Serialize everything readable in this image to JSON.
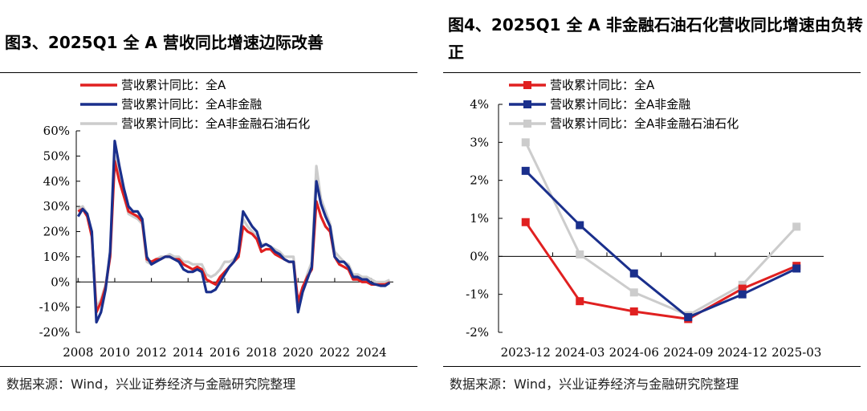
{
  "charts": [
    {
      "title": "图3、2025Q1 全 A 营收同比增速边际改善",
      "source": "数据来源：Wind，兴业证券经济与金融研究院整理"
    },
    {
      "title": "图4、2025Q1 全 A 非金融石油石化营收同比增速由负转正",
      "source": "数据来源：Wind，兴业证券经济与金融研究院整理"
    }
  ],
  "chart_data": [
    {
      "type": "line",
      "title": "图3、2025Q1 全 A 营收同比增速边际改善",
      "xlabel": "",
      "ylabel": "",
      "xlim": [
        2007.9,
        2025.2
      ],
      "ylim": [
        -20,
        60
      ],
      "x_ticks": [
        "2008",
        "2010",
        "2012",
        "2014",
        "2016",
        "2018",
        "2020",
        "2022",
        "2024"
      ],
      "y_ticks": [
        "-20%",
        "-10%",
        "0%",
        "10%",
        "20%",
        "30%",
        "40%",
        "50%",
        "60%"
      ],
      "legend_position": "top-left",
      "series": [
        {
          "name": "营收累计同比：全A",
          "color": "#e02020",
          "points": [
            [
              2008.0,
              28
            ],
            [
              2008.25,
              29
            ],
            [
              2008.5,
              26
            ],
            [
              2008.75,
              18
            ],
            [
              2009.0,
              -12
            ],
            [
              2009.25,
              -8
            ],
            [
              2009.5,
              -2
            ],
            [
              2009.75,
              10
            ],
            [
              2010.0,
              48
            ],
            [
              2010.25,
              40
            ],
            [
              2010.5,
              34
            ],
            [
              2010.75,
              28
            ],
            [
              2011.0,
              27
            ],
            [
              2011.25,
              26
            ],
            [
              2011.5,
              24
            ],
            [
              2011.75,
              9
            ],
            [
              2012.0,
              8
            ],
            [
              2012.25,
              9
            ],
            [
              2012.5,
              9
            ],
            [
              2012.75,
              10
            ],
            [
              2013.0,
              10
            ],
            [
              2013.25,
              9
            ],
            [
              2013.5,
              9
            ],
            [
              2013.75,
              7
            ],
            [
              2014.0,
              6
            ],
            [
              2014.25,
              5
            ],
            [
              2014.5,
              6
            ],
            [
              2014.75,
              5
            ],
            [
              2015.0,
              1
            ],
            [
              2015.25,
              0
            ],
            [
              2015.5,
              -1
            ],
            [
              2015.75,
              2
            ],
            [
              2016.0,
              4
            ],
            [
              2016.25,
              6
            ],
            [
              2016.5,
              8
            ],
            [
              2016.75,
              10
            ],
            [
              2017.0,
              22
            ],
            [
              2017.25,
              20
            ],
            [
              2017.5,
              19
            ],
            [
              2017.75,
              17
            ],
            [
              2018.0,
              12
            ],
            [
              2018.25,
              13
            ],
            [
              2018.5,
              13
            ],
            [
              2018.75,
              11
            ],
            [
              2019.0,
              10
            ],
            [
              2019.25,
              9
            ],
            [
              2019.5,
              8
            ],
            [
              2019.75,
              8
            ],
            [
              2020.0,
              -8
            ],
            [
              2020.25,
              -2
            ],
            [
              2020.5,
              2
            ],
            [
              2020.75,
              5
            ],
            [
              2021.0,
              32
            ],
            [
              2021.25,
              26
            ],
            [
              2021.5,
              22
            ],
            [
              2021.75,
              20
            ],
            [
              2022.0,
              10
            ],
            [
              2022.25,
              7
            ],
            [
              2022.5,
              6
            ],
            [
              2022.75,
              5
            ],
            [
              2023.0,
              1
            ],
            [
              2023.25,
              1
            ],
            [
              2023.5,
              0
            ],
            [
              2023.75,
              0
            ],
            [
              2024.0,
              -1
            ],
            [
              2024.25,
              -1
            ],
            [
              2024.5,
              -1
            ],
            [
              2024.75,
              -1
            ],
            [
              2025.0,
              -0.2
            ]
          ]
        },
        {
          "name": "营收累计同比：全A非金融",
          "color": "#1a2f8c",
          "points": [
            [
              2008.0,
              26
            ],
            [
              2008.25,
              29
            ],
            [
              2008.5,
              27
            ],
            [
              2008.75,
              20
            ],
            [
              2009.0,
              -16
            ],
            [
              2009.25,
              -12
            ],
            [
              2009.5,
              -3
            ],
            [
              2009.75,
              12
            ],
            [
              2010.0,
              56
            ],
            [
              2010.25,
              46
            ],
            [
              2010.5,
              37
            ],
            [
              2010.75,
              30
            ],
            [
              2011.0,
              28
            ],
            [
              2011.25,
              28
            ],
            [
              2011.5,
              25
            ],
            [
              2011.75,
              10
            ],
            [
              2012.0,
              7
            ],
            [
              2012.25,
              8
            ],
            [
              2012.5,
              9
            ],
            [
              2012.75,
              10
            ],
            [
              2013.0,
              10
            ],
            [
              2013.25,
              9
            ],
            [
              2013.5,
              8
            ],
            [
              2013.75,
              5
            ],
            [
              2014.0,
              4
            ],
            [
              2014.25,
              4
            ],
            [
              2014.5,
              5
            ],
            [
              2014.75,
              4
            ],
            [
              2015.0,
              -4
            ],
            [
              2015.25,
              -4
            ],
            [
              2015.5,
              -3
            ],
            [
              2015.75,
              0
            ],
            [
              2016.0,
              3
            ],
            [
              2016.25,
              6
            ],
            [
              2016.5,
              8
            ],
            [
              2016.75,
              12
            ],
            [
              2017.0,
              28
            ],
            [
              2017.25,
              25
            ],
            [
              2017.5,
              22
            ],
            [
              2017.75,
              20
            ],
            [
              2018.0,
              14
            ],
            [
              2018.25,
              15
            ],
            [
              2018.5,
              14
            ],
            [
              2018.75,
              12
            ],
            [
              2019.0,
              11
            ],
            [
              2019.25,
              9
            ],
            [
              2019.5,
              8
            ],
            [
              2019.75,
              8
            ],
            [
              2020.0,
              -12
            ],
            [
              2020.25,
              -4
            ],
            [
              2020.5,
              1
            ],
            [
              2020.75,
              6
            ],
            [
              2021.0,
              40
            ],
            [
              2021.25,
              31
            ],
            [
              2021.5,
              26
            ],
            [
              2021.75,
              22
            ],
            [
              2022.0,
              10
            ],
            [
              2022.25,
              8
            ],
            [
              2022.5,
              8
            ],
            [
              2022.75,
              6
            ],
            [
              2023.0,
              2
            ],
            [
              2023.25,
              2
            ],
            [
              2023.5,
              1
            ],
            [
              2023.75,
              1
            ],
            [
              2024.0,
              -0.5
            ],
            [
              2024.25,
              -1
            ],
            [
              2024.5,
              -1.5
            ],
            [
              2024.75,
              -1.5
            ],
            [
              2025.0,
              -0.3
            ]
          ]
        },
        {
          "name": "营收累计同比：全A非金融石油石化",
          "color": "#cccccc",
          "points": [
            [
              2008.0,
              29
            ],
            [
              2008.25,
              30
            ],
            [
              2008.5,
              27
            ],
            [
              2008.75,
              18
            ],
            [
              2009.0,
              -10
            ],
            [
              2009.25,
              -7
            ],
            [
              2009.5,
              -1
            ],
            [
              2009.75,
              11
            ],
            [
              2010.0,
              50
            ],
            [
              2010.25,
              42
            ],
            [
              2010.5,
              34
            ],
            [
              2010.75,
              27
            ],
            [
              2011.0,
              26
            ],
            [
              2011.25,
              25
            ],
            [
              2011.5,
              23
            ],
            [
              2011.75,
              8
            ],
            [
              2012.0,
              7
            ],
            [
              2012.25,
              9
            ],
            [
              2012.5,
              10
            ],
            [
              2012.75,
              10
            ],
            [
              2013.0,
              11
            ],
            [
              2013.25,
              10
            ],
            [
              2013.5,
              10
            ],
            [
              2013.75,
              8
            ],
            [
              2014.0,
              8
            ],
            [
              2014.25,
              7
            ],
            [
              2014.5,
              7
            ],
            [
              2014.75,
              7
            ],
            [
              2015.0,
              3
            ],
            [
              2015.25,
              2
            ],
            [
              2015.5,
              3
            ],
            [
              2015.75,
              5
            ],
            [
              2016.0,
              8
            ],
            [
              2016.25,
              8
            ],
            [
              2016.5,
              9
            ],
            [
              2016.75,
              11
            ],
            [
              2017.0,
              25
            ],
            [
              2017.25,
              22
            ],
            [
              2017.5,
              20
            ],
            [
              2017.75,
              18
            ],
            [
              2018.0,
              15
            ],
            [
              2018.25,
              15
            ],
            [
              2018.5,
              14
            ],
            [
              2018.75,
              13
            ],
            [
              2019.0,
              12
            ],
            [
              2019.25,
              10
            ],
            [
              2019.5,
              10
            ],
            [
              2019.75,
              10
            ],
            [
              2020.0,
              -10
            ],
            [
              2020.25,
              -3
            ],
            [
              2020.5,
              3
            ],
            [
              2020.75,
              8
            ],
            [
              2021.0,
              46
            ],
            [
              2021.25,
              33
            ],
            [
              2021.5,
              28
            ],
            [
              2021.75,
              23
            ],
            [
              2022.0,
              12
            ],
            [
              2022.25,
              10
            ],
            [
              2022.5,
              8
            ],
            [
              2022.75,
              7
            ],
            [
              2023.0,
              3
            ],
            [
              2023.25,
              3
            ],
            [
              2023.5,
              2
            ],
            [
              2023.75,
              2
            ],
            [
              2024.0,
              1
            ],
            [
              2024.25,
              0
            ],
            [
              2024.5,
              0
            ],
            [
              2024.75,
              0
            ],
            [
              2025.0,
              0.8
            ]
          ]
        }
      ]
    },
    {
      "type": "line",
      "title": "图4、2025Q1 全 A 非金融石油石化营收同比增速由负转正",
      "xlabel": "",
      "ylabel": "",
      "categories": [
        "2023-12",
        "2024-03",
        "2024-06",
        "2024-09",
        "2024-12",
        "2025-03"
      ],
      "ylim": [
        -2,
        4
      ],
      "y_ticks": [
        "-2%",
        "-1%",
        "0%",
        "1%",
        "2%",
        "3%",
        "4%"
      ],
      "legend_position": "top-left",
      "markers": "square",
      "series": [
        {
          "name": "营收累计同比：全A",
          "color": "#e02020",
          "values": [
            0.9,
            -1.18,
            -1.45,
            -1.65,
            -0.85,
            -0.25
          ]
        },
        {
          "name": "营收累计同比：全A非金融",
          "color": "#1a2f8c",
          "values": [
            2.25,
            0.82,
            -0.45,
            -1.6,
            -1.0,
            -0.32
          ]
        },
        {
          "name": "营收累计同比：全A非金融石油石化",
          "color": "#cccccc",
          "values": [
            3.0,
            0.05,
            -0.95,
            -1.55,
            -0.75,
            0.78
          ]
        }
      ]
    }
  ]
}
